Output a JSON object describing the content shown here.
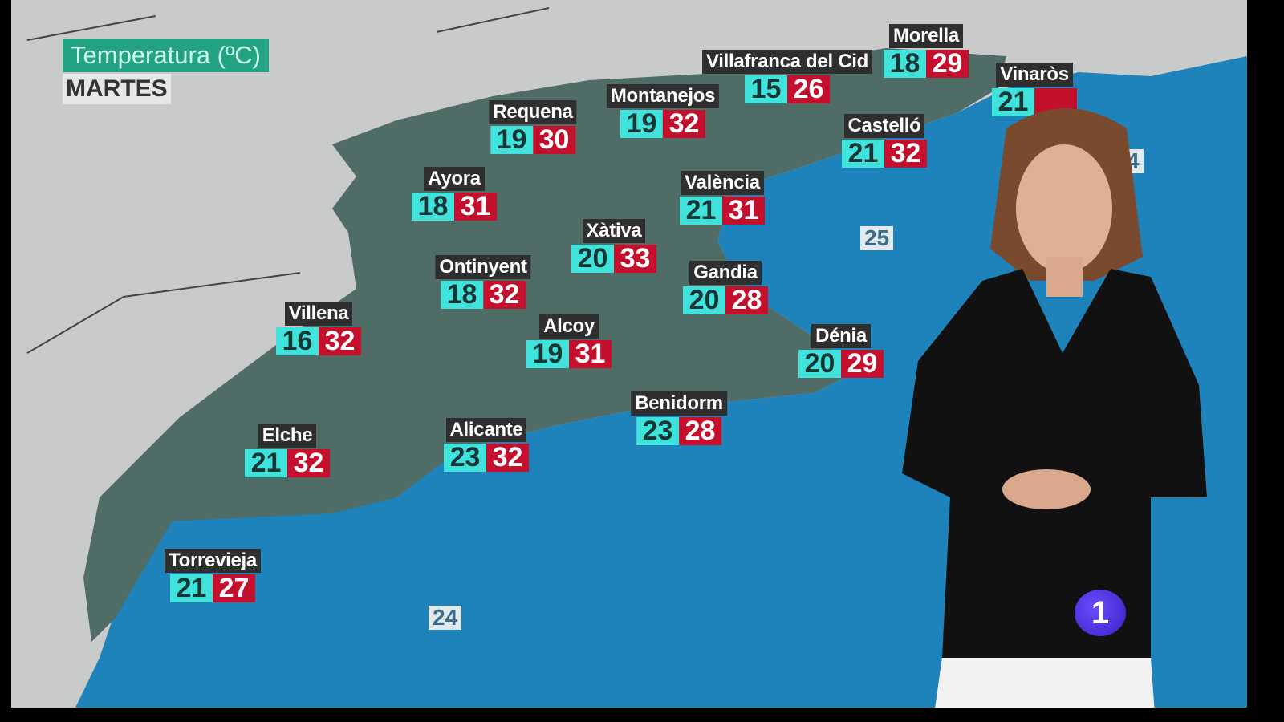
{
  "legend": {
    "title": "Temperatura (ºC)",
    "day": "MARTES"
  },
  "cities": [
    {
      "name": "Requena",
      "min": "19",
      "max": "30"
    },
    {
      "name": "Montanejos",
      "min": "19",
      "max": "32"
    },
    {
      "name": "Villafranca del Cid",
      "min": "15",
      "max": "26"
    },
    {
      "name": "Morella",
      "min": "18",
      "max": "29"
    },
    {
      "name": "Vinaròs",
      "min": "21"
    },
    {
      "name": "Castelló",
      "min": "21",
      "max": "32"
    },
    {
      "name": "Ayora",
      "min": "18",
      "max": "31"
    },
    {
      "name": "València",
      "min": "21",
      "max": "31"
    },
    {
      "name": "Xàtiva",
      "min": "20",
      "max": "33"
    },
    {
      "name": "Ontinyent",
      "min": "18",
      "max": "32"
    },
    {
      "name": "Gandia",
      "min": "20",
      "max": "28"
    },
    {
      "name": "Villena",
      "min": "16",
      "max": "32"
    },
    {
      "name": "Alcoy",
      "min": "19",
      "max": "31"
    },
    {
      "name": "Dénia",
      "min": "20",
      "max": "29"
    },
    {
      "name": "Benidorm",
      "min": "23",
      "max": "28"
    },
    {
      "name": "Alicante",
      "min": "23",
      "max": "32"
    },
    {
      "name": "Elche",
      "min": "21",
      "max": "32"
    },
    {
      "name": "Torrevieja",
      "min": "21",
      "max": "27"
    }
  ],
  "sea_temps": [
    "25",
    "24",
    "4"
  ],
  "channel_logo": "1",
  "colors": {
    "min": "#3fe3dc",
    "max": "#c4102c",
    "legend": "#24a384",
    "sea": "#1d7fb8"
  }
}
